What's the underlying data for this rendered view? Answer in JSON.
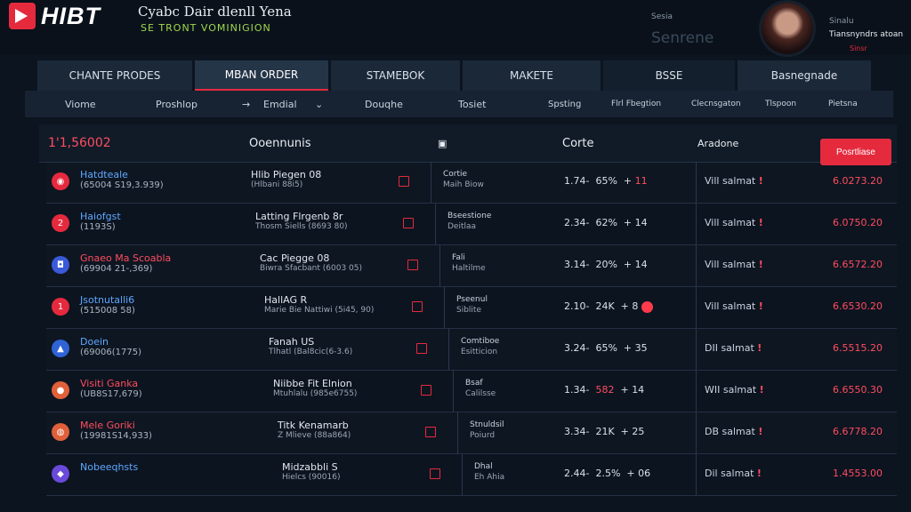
{
  "header": {
    "logo_text": "HIBT",
    "app_title": "Cyabc Dair dlenll Yena",
    "app_subtitle": "SE TRONT VOMINIGION",
    "user_label": "Sesia",
    "user_name": "Senrene",
    "user_right_1": "Sinalu",
    "user_right_2": "Tiansnyndrs atoan",
    "user_right_3": "Sinsr"
  },
  "tabs": [
    "CHANTE PRODES",
    "MBAN ORDER",
    "STAMEBOK",
    "MAKETE",
    "BSSE",
    "Basnegnade"
  ],
  "active_tab": "MBAN ORDER",
  "filters": [
    "Viome",
    "Proshlop",
    "Emdial",
    "Douqhe",
    "Tosiet",
    "Spsting",
    "Flrl Fbegtion",
    "Clecnsgaton",
    "Tlspoon",
    "Pietsna"
  ],
  "table": {
    "header_id": "1'1,56002",
    "header_col2": "Ooennunis",
    "header_col3": "Corte",
    "header_col4": "Aradone",
    "position_button": "Posrtliase"
  },
  "rows": [
    {
      "name": "Hatdteale",
      "code": "(65004 S19,3.939)",
      "plan": "Hlib Piegen 08",
      "plan_sub": "(Hlbani 88i5)",
      "type1": "Cortie",
      "type2": "Maih Biow",
      "stats_a": "1.74-",
      "stats_b": "65%",
      "stats_c": "11",
      "stats_c_neg": true,
      "status": "Vill salmat",
      "amount": "6.0273.20",
      "icon_color": "#e52a3d",
      "name_color": "#5ea8ff",
      "icon_glyph": "◉",
      "dot": false
    },
    {
      "name": "Haiofgst",
      "code": "(1193S)",
      "plan": "Latting Flrgenb 8r",
      "plan_sub": "Thosm Siells (8693 80)",
      "type1": "Bseestione",
      "type2": "Deitlaa",
      "stats_a": "2.34-",
      "stats_b": "62%",
      "stats_c": "14",
      "stats_c_neg": false,
      "status": "Vill salmat",
      "amount": "6.0750.20",
      "icon_color": "#e52a3d",
      "name_color": "#5ea8ff",
      "icon_glyph": "2",
      "dot": false
    },
    {
      "name": "Gnaeo Ma Scoabla",
      "code": "(69904 21-,369)",
      "plan": "Cac Piegge 08",
      "plan_sub": "Biwra Sfacbant (6003 05)",
      "type1": "Fali",
      "type2": "Haltilme",
      "stats_a": "3.14-",
      "stats_b": "20%",
      "stats_c": "14",
      "stats_c_neg": false,
      "status": "Vill salmat",
      "amount": "6.6572.20",
      "icon_color": "#3a5ad9",
      "name_color": "#ff4d5e",
      "icon_glyph": "◘",
      "dot": false
    },
    {
      "name": "Jsotnutalli6",
      "code": "(515008 58)",
      "plan": "HallAG R",
      "plan_sub": "Marie Bie Nattiwi (5i45, 90)",
      "type1": "Pseenul",
      "type2": "Siblite",
      "stats_a": "2.10-",
      "stats_b": "24K",
      "stats_c": "8",
      "stats_c_neg": false,
      "status": "Vill salmat",
      "amount": "6.6530.20",
      "icon_color": "#e52a3d",
      "name_color": "#5ea8ff",
      "icon_glyph": "1",
      "dot": true
    },
    {
      "name": "Doein",
      "code": "(69006(1775)",
      "plan": "Fanah US",
      "plan_sub": "Tlhatl (Bal8cic(6-3.6)",
      "type1": "Comtiboe",
      "type2": "Esitticion",
      "stats_a": "3.24-",
      "stats_b": "65%",
      "stats_c": "35",
      "stats_c_neg": false,
      "status": "DII salmat",
      "amount": "6.5515.20",
      "icon_color": "#2f63d6",
      "name_color": "#5ea8ff",
      "icon_glyph": "▲",
      "dot": false
    },
    {
      "name": "Visiti Ganka",
      "code": "(UB8S17,679)",
      "plan": "Niibbe Fit Elnion",
      "plan_sub": "Mtuhlalu (985e6755)",
      "type1": "Bsaf",
      "type2": "Calilsse",
      "stats_a": "1.34-",
      "stats_b": "582",
      "stats_c": "14",
      "stats_c_neg": false,
      "status": "WII salmat",
      "amount": "6.6550.30",
      "icon_color": "#e0603a",
      "name_color": "#ff4d5e",
      "icon_glyph": "●",
      "dot": false
    },
    {
      "name": "Mele Goriki",
      "code": "(19981S14,933)",
      "plan": "Titk Kenamarb",
      "plan_sub": "Z Mlieve (88a864)",
      "type1": "Stnuldsil",
      "type2": "Poiurd",
      "stats_a": "3.34-",
      "stats_b": "21K",
      "stats_c": "25",
      "stats_c_neg": false,
      "status": "DB salmat",
      "amount": "6.6778.20",
      "icon_color": "#e0603a",
      "name_color": "#ff4d5e",
      "icon_glyph": "◍",
      "dot": false
    },
    {
      "name": "Nobeeqhsts",
      "code": "",
      "plan": "Midzabbli S",
      "plan_sub": "Hielcs (90016)",
      "type1": "Dhal",
      "type2": "Eh Ahia",
      "stats_a": "2.44-",
      "stats_b": "2.5%",
      "stats_c": "06",
      "stats_c_neg": false,
      "status": "Dil salmat",
      "amount": "1.4553.00",
      "icon_color": "#6a4ad9",
      "name_color": "#5ea8ff",
      "icon_glyph": "◆",
      "dot": false
    }
  ]
}
